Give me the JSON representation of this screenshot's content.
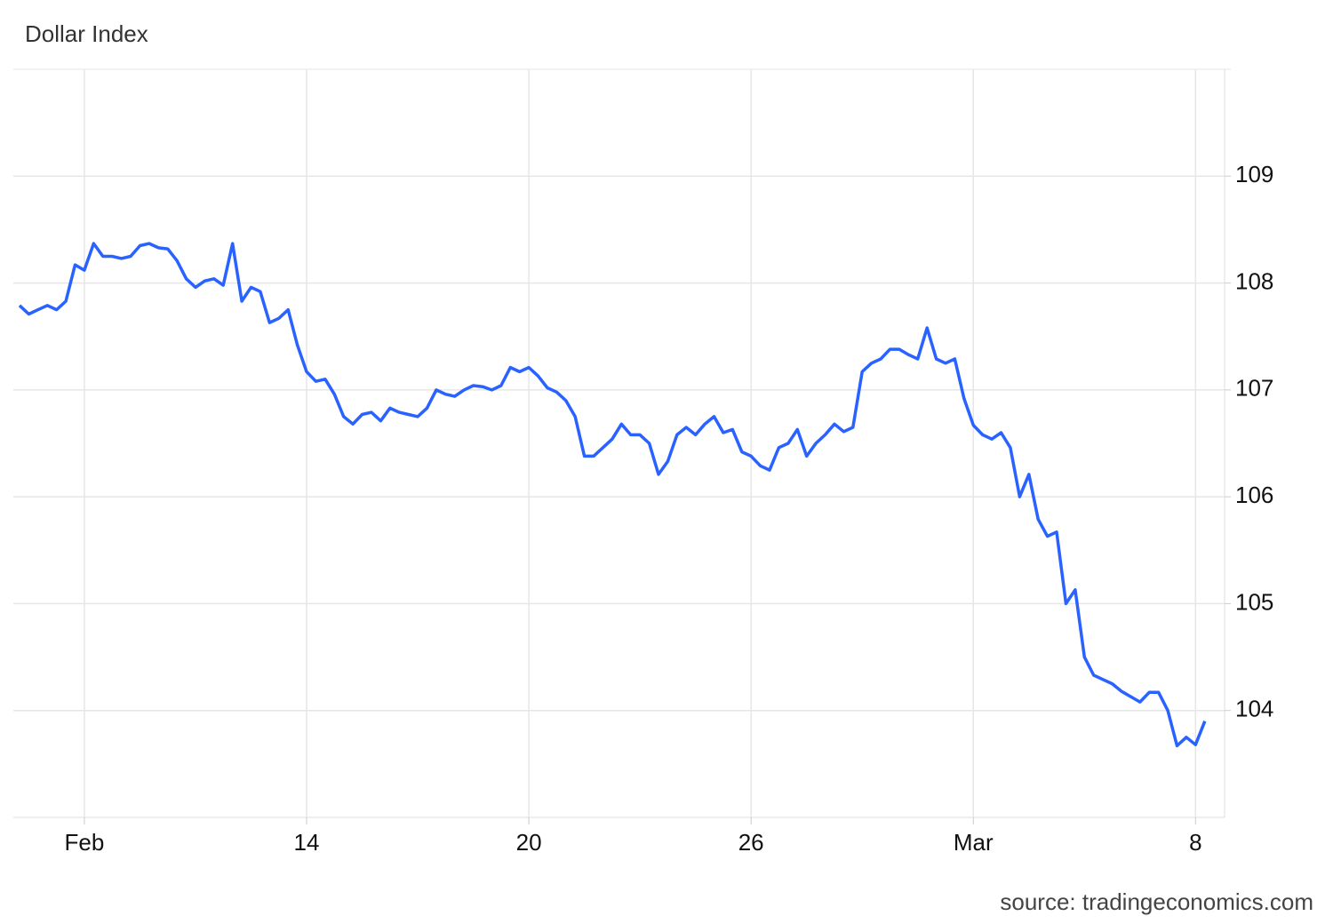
{
  "chart_data": {
    "type": "line",
    "title": "Dollar Index",
    "source": "source: tradingeconomics.com",
    "color": "#2962ff",
    "grid": true,
    "ylim": [
      103,
      110
    ],
    "yticks": [
      104,
      105,
      106,
      107,
      108,
      109
    ],
    "categories": [
      null,
      null,
      null,
      null,
      null,
      null,
      null,
      "Feb",
      null,
      null,
      null,
      null,
      null,
      null,
      null,
      null,
      null,
      null,
      null,
      null,
      null,
      null,
      null,
      null,
      null,
      null,
      null,
      null,
      null,
      null,
      null,
      "14",
      null,
      null,
      null,
      null,
      null,
      null,
      null,
      null,
      null,
      null,
      null,
      null,
      null,
      null,
      null,
      null,
      null,
      null,
      null,
      null,
      null,
      null,
      null,
      "20",
      null,
      null,
      null,
      null,
      null,
      null,
      null,
      null,
      null,
      null,
      null,
      null,
      null,
      null,
      null,
      null,
      null,
      null,
      null,
      null,
      null,
      null,
      null,
      "26",
      null,
      null,
      null,
      null,
      null,
      null,
      null,
      null,
      null,
      null,
      null,
      null,
      null,
      null,
      null,
      null,
      null,
      null,
      null,
      null,
      null,
      null,
      null,
      "Mar",
      null,
      null,
      null,
      null,
      null,
      null,
      null,
      null,
      null,
      null,
      null,
      null,
      null,
      null,
      null,
      null,
      null,
      null,
      null,
      null,
      null,
      null,
      null,
      "8",
      null
    ],
    "values": [
      107.79,
      107.71,
      107.75,
      107.79,
      107.75,
      107.83,
      108.17,
      108.12,
      108.37,
      108.25,
      108.25,
      108.23,
      108.25,
      108.35,
      108.37,
      108.33,
      108.32,
      108.21,
      108.04,
      107.96,
      108.02,
      108.04,
      107.98,
      108.37,
      107.83,
      107.96,
      107.92,
      107.63,
      107.67,
      107.75,
      107.42,
      107.17,
      107.08,
      107.1,
      106.96,
      106.75,
      106.68,
      106.77,
      106.79,
      106.71,
      106.83,
      106.79,
      106.77,
      106.75,
      106.83,
      107.0,
      106.96,
      106.94,
      107.0,
      107.04,
      107.03,
      107.0,
      107.04,
      107.21,
      107.17,
      107.21,
      107.13,
      107.02,
      106.98,
      106.9,
      106.75,
      106.38,
      106.38,
      106.46,
      106.54,
      106.68,
      106.58,
      106.58,
      106.5,
      106.21,
      106.33,
      106.58,
      106.65,
      106.58,
      106.68,
      106.75,
      106.6,
      106.63,
      106.42,
      106.38,
      106.29,
      106.25,
      106.46,
      106.5,
      106.63,
      106.38,
      106.5,
      106.58,
      106.68,
      106.61,
      106.65,
      107.17,
      107.25,
      107.29,
      107.38,
      107.38,
      107.33,
      107.29,
      107.58,
      107.29,
      107.25,
      107.29,
      106.92,
      106.67,
      106.58,
      106.54,
      106.6,
      106.46,
      106.0,
      106.21,
      105.79,
      105.63,
      105.67,
      105.0,
      105.13,
      104.5,
      104.33,
      104.29,
      104.25,
      104.18,
      104.13,
      104.08,
      104.17,
      104.17,
      104.0,
      103.67,
      103.75,
      103.68,
      103.9
    ]
  }
}
